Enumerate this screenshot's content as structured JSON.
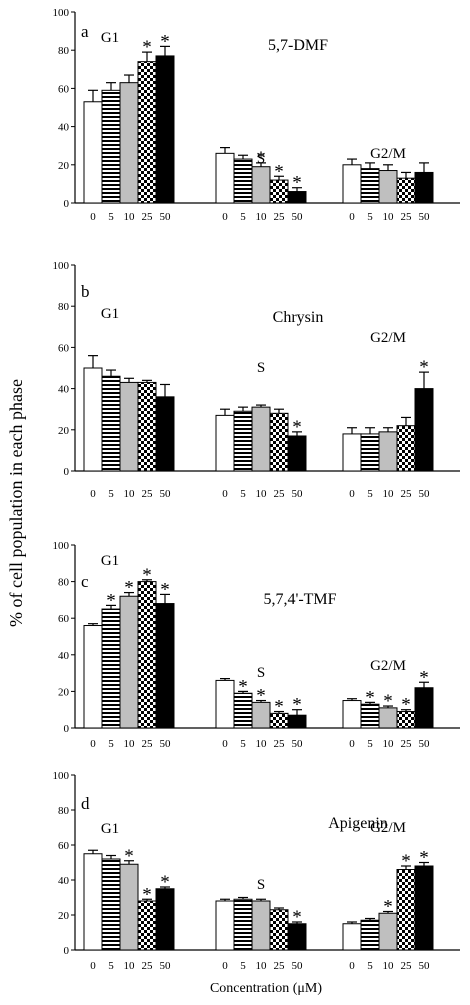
{
  "figure": {
    "ylabel": "% of cell population in each phase",
    "xlabel": "Concentration (μM)"
  },
  "colors": {
    "axis": "#000000",
    "bar_fill_0": "#ffffff",
    "bar_fill_10": "#bfbfbf",
    "bar_fill_50": "#000000"
  },
  "chart_data": [
    {
      "type": "bar",
      "panel": "a",
      "title": "5,7-DMF",
      "ylim": [
        0,
        100
      ],
      "yticks": [
        0,
        20,
        40,
        60,
        80,
        100
      ],
      "concentrations": [
        "0",
        "5",
        "10",
        "25",
        "50"
      ],
      "groups": [
        {
          "name": "G1",
          "values": [
            53,
            59,
            63,
            74,
            77
          ],
          "errors": [
            6,
            4,
            4,
            5,
            5
          ],
          "significant": [
            false,
            false,
            false,
            true,
            true
          ]
        },
        {
          "name": "S",
          "values": [
            26,
            23,
            19,
            12,
            6
          ],
          "errors": [
            3,
            2,
            2,
            2,
            2
          ],
          "significant": [
            false,
            false,
            true,
            true,
            true
          ]
        },
        {
          "name": "G2/M",
          "values": [
            20,
            18,
            17,
            13,
            16
          ],
          "errors": [
            3,
            3,
            3,
            3,
            5
          ],
          "significant": [
            false,
            false,
            false,
            false,
            false
          ]
        }
      ]
    },
    {
      "type": "bar",
      "panel": "b",
      "title": "Chrysin",
      "ylim": [
        0,
        100
      ],
      "yticks": [
        0,
        20,
        40,
        60,
        80,
        100
      ],
      "concentrations": [
        "0",
        "5",
        "10",
        "25",
        "50"
      ],
      "groups": [
        {
          "name": "G1",
          "values": [
            50,
            46,
            43,
            43,
            36
          ],
          "errors": [
            6,
            3,
            2,
            1,
            6
          ],
          "significant": [
            false,
            false,
            false,
            false,
            false
          ]
        },
        {
          "name": "S",
          "values": [
            27,
            29,
            31,
            28,
            17
          ],
          "errors": [
            3,
            2,
            1,
            2,
            2
          ],
          "significant": [
            false,
            false,
            false,
            false,
            true
          ]
        },
        {
          "name": "G2/M",
          "values": [
            18,
            18,
            19,
            22,
            40
          ],
          "errors": [
            3,
            3,
            2,
            4,
            8
          ],
          "significant": [
            false,
            false,
            false,
            false,
            true
          ]
        }
      ]
    },
    {
      "type": "bar",
      "panel": "c",
      "title": "5,7,4'-TMF",
      "ylim": [
        0,
        100
      ],
      "yticks": [
        0,
        20,
        40,
        60,
        80,
        100
      ],
      "concentrations": [
        "0",
        "5",
        "10",
        "25",
        "50"
      ],
      "groups": [
        {
          "name": "G1",
          "values": [
            56,
            65,
            72,
            80,
            68
          ],
          "errors": [
            1,
            2,
            2,
            1,
            5
          ],
          "significant": [
            false,
            true,
            true,
            true,
            true
          ]
        },
        {
          "name": "S",
          "values": [
            26,
            19,
            14,
            8,
            7
          ],
          "errors": [
            1,
            1,
            1,
            1,
            3
          ],
          "significant": [
            false,
            true,
            true,
            true,
            true
          ]
        },
        {
          "name": "G2/M",
          "values": [
            15,
            13,
            11,
            9,
            22
          ],
          "errors": [
            1,
            1,
            1,
            1,
            3
          ],
          "significant": [
            false,
            true,
            true,
            true,
            true
          ]
        }
      ]
    },
    {
      "type": "bar",
      "panel": "d",
      "title": "Apigenin",
      "ylim": [
        0,
        100
      ],
      "yticks": [
        0,
        20,
        40,
        60,
        80,
        100
      ],
      "concentrations": [
        "0",
        "5",
        "10",
        "25",
        "50"
      ],
      "groups": [
        {
          "name": "G1",
          "values": [
            55,
            52,
            49,
            28,
            35
          ],
          "errors": [
            2,
            2,
            2,
            1,
            1
          ],
          "significant": [
            false,
            false,
            true,
            true,
            true
          ]
        },
        {
          "name": "S",
          "values": [
            28,
            29,
            28,
            23,
            15
          ],
          "errors": [
            1,
            1,
            1,
            1,
            1
          ],
          "significant": [
            false,
            false,
            false,
            false,
            true
          ]
        },
        {
          "name": "G2/M",
          "values": [
            15,
            17,
            21,
            46,
            48
          ],
          "errors": [
            1,
            1,
            1,
            2,
            2
          ],
          "significant": [
            false,
            false,
            true,
            true,
            true
          ]
        }
      ]
    }
  ]
}
